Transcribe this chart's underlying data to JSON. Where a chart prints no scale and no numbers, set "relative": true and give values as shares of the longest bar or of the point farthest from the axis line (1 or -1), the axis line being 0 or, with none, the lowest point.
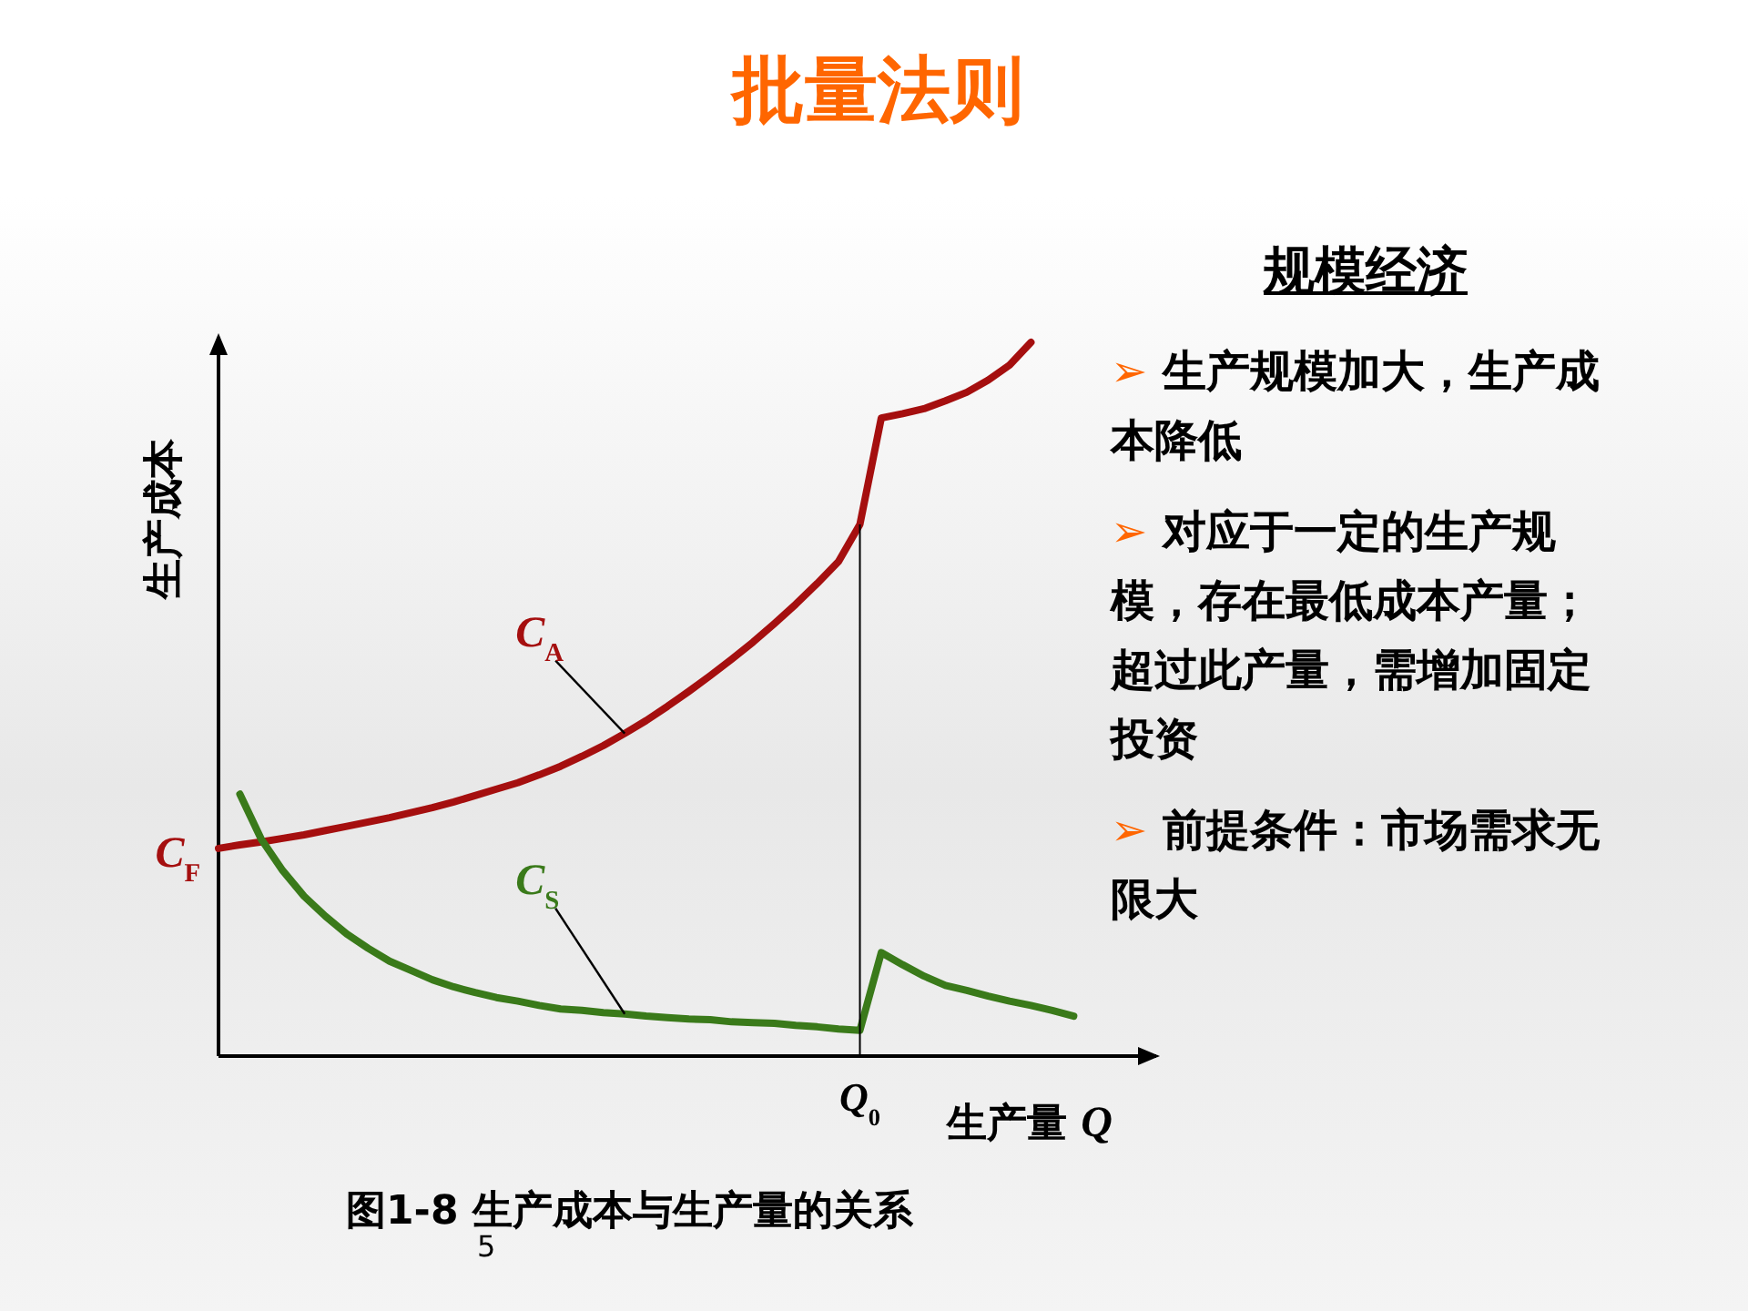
{
  "chart_data": {
    "type": "line",
    "relative": true,
    "title": "批量法则",
    "xlabel": "生产量 Q",
    "ylabel": "生产成本",
    "categories": [
      null,
      null,
      null,
      null,
      null,
      null,
      null,
      null,
      null,
      null,
      null,
      null,
      null,
      null,
      null,
      null,
      null,
      null,
      null,
      null,
      null,
      null,
      null,
      null,
      null,
      null,
      null,
      null,
      null,
      null,
      null,
      null,
      null,
      null,
      null,
      null,
      null,
      null,
      null,
      null,
      null
    ],
    "series": [
      {
        "name": "C$_{A}$",
        "color": "#a50f0f",
        "values": [
          0.291,
          0.296,
          0.3,
          0.305,
          0.31,
          0.316,
          0.322,
          0.328,
          0.334,
          0.341,
          0.348,
          0.356,
          0.365,
          0.374,
          0.383,
          0.394,
          0.406,
          0.42,
          0.435,
          0.452,
          0.47,
          0.49,
          0.511,
          0.533,
          0.556,
          0.58,
          0.606,
          0.633,
          0.662,
          0.693,
          0.745,
          0.894,
          0.9,
          0.907,
          0.918,
          0.93,
          0.947,
          0.968,
          1,
          null,
          null
        ]
      },
      {
        "name": "C$_{S}$",
        "color": "#3a7a1a",
        "values": [
          null,
          0.367,
          0.304,
          0.26,
          0.224,
          0.196,
          0.171,
          0.151,
          0.133,
          0.12,
          0.107,
          0.097,
          0.089,
          0.082,
          0.077,
          0.071,
          0.066,
          0.064,
          0.061,
          0.059,
          0.056,
          0.054,
          0.052,
          0.051,
          0.048,
          0.047,
          0.046,
          0.043,
          0.041,
          0.038,
          0.036,
          0.145,
          0.128,
          0.112,
          0.099,
          0.092,
          0.084,
          0.077,
          0.071,
          0.064,
          0.056
        ]
      }
    ],
    "annotations": [
      "C$_{F}$",
      "Q$_{0}$",
      "规模经济",
      "➢ 生产规模加大，生产成本降低",
      "➢ 对应于一定的生产规模，存在最低成本产量；超过此产量，需增加固定投资",
      "➢ 前提条件：市场需求无限大",
      "图1-8 生产成本与生产量的关系",
      "5"
    ]
  }
}
